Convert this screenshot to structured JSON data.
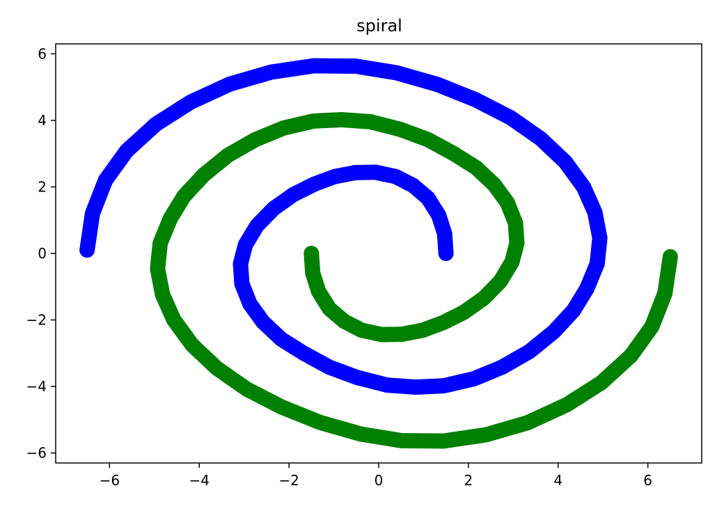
{
  "chart_data": {
    "type": "scatter",
    "title": "spiral",
    "xlabel": "",
    "ylabel": "",
    "xlim": [
      -7.2,
      7.2
    ],
    "ylim": [
      -6.3,
      6.3
    ],
    "xticks": [
      -6,
      -4,
      -2,
      0,
      2,
      4,
      6
    ],
    "yticks": [
      -6,
      -4,
      -2,
      0,
      2,
      4,
      6
    ],
    "xtick_labels": [
      "−6",
      "−4",
      "−2",
      "0",
      "2",
      "4",
      "6"
    ],
    "ytick_labels": [
      "−6",
      "−4",
      "−2",
      "0",
      "2",
      "4",
      "6"
    ],
    "grid": false,
    "legend": "none",
    "series": [
      {
        "color": "#0000ff",
        "points": [
          [
            1.5,
            0.0
          ],
          [
            1.47,
            0.59
          ],
          [
            1.34,
            1.14
          ],
          [
            1.1,
            1.66
          ],
          [
            0.77,
            2.04
          ],
          [
            0.38,
            2.31
          ],
          [
            -0.07,
            2.44
          ],
          [
            -0.52,
            2.43
          ],
          [
            -0.98,
            2.31
          ],
          [
            -1.44,
            2.08
          ],
          [
            -1.9,
            1.77
          ],
          [
            -2.34,
            1.35
          ],
          [
            -2.71,
            0.84
          ],
          [
            -2.97,
            0.26
          ],
          [
            -3.08,
            -0.31
          ],
          [
            -3.05,
            -0.91
          ],
          [
            -2.87,
            -1.52
          ],
          [
            -2.58,
            -2.06
          ],
          [
            -2.17,
            -2.58
          ],
          [
            -1.66,
            -3.01
          ],
          [
            -1.1,
            -3.42
          ],
          [
            -0.48,
            -3.73
          ],
          [
            0.19,
            -3.96
          ],
          [
            0.83,
            -4.02
          ],
          [
            1.45,
            -3.98
          ],
          [
            2.12,
            -3.77
          ],
          [
            2.75,
            -3.42
          ],
          [
            3.36,
            -2.95
          ],
          [
            3.9,
            -2.36
          ],
          [
            4.34,
            -1.72
          ],
          [
            4.64,
            -1.06
          ],
          [
            4.87,
            -0.31
          ],
          [
            4.93,
            0.46
          ],
          [
            4.82,
            1.23
          ],
          [
            4.57,
            1.99
          ],
          [
            4.16,
            2.75
          ],
          [
            3.61,
            3.45
          ],
          [
            2.94,
            4.08
          ],
          [
            2.16,
            4.62
          ],
          [
            1.31,
            5.08
          ],
          [
            0.4,
            5.43
          ],
          [
            -0.51,
            5.63
          ],
          [
            -1.45,
            5.64
          ],
          [
            -2.4,
            5.45
          ],
          [
            -3.32,
            5.09
          ],
          [
            -4.19,
            4.55
          ],
          [
            -4.96,
            3.89
          ],
          [
            -5.62,
            3.08
          ],
          [
            -6.09,
            2.2
          ],
          [
            -6.38,
            1.2
          ],
          [
            -6.5,
            0.1
          ]
        ]
      },
      {
        "color": "#008000",
        "points": [
          [
            -1.5,
            0.0
          ],
          [
            -1.47,
            -0.59
          ],
          [
            -1.34,
            -1.14
          ],
          [
            -1.1,
            -1.66
          ],
          [
            -0.77,
            -2.04
          ],
          [
            -0.38,
            -2.31
          ],
          [
            0.07,
            -2.44
          ],
          [
            0.52,
            -2.43
          ],
          [
            0.98,
            -2.31
          ],
          [
            1.44,
            -2.08
          ],
          [
            1.9,
            -1.77
          ],
          [
            2.34,
            -1.35
          ],
          [
            2.71,
            -0.84
          ],
          [
            2.97,
            -0.26
          ],
          [
            3.08,
            0.31
          ],
          [
            3.05,
            0.91
          ],
          [
            2.87,
            1.52
          ],
          [
            2.58,
            2.06
          ],
          [
            2.17,
            2.58
          ],
          [
            1.66,
            3.01
          ],
          [
            1.1,
            3.42
          ],
          [
            0.48,
            3.73
          ],
          [
            -0.19,
            3.96
          ],
          [
            -0.83,
            4.02
          ],
          [
            -1.45,
            3.98
          ],
          [
            -2.12,
            3.77
          ],
          [
            -2.75,
            3.42
          ],
          [
            -3.36,
            2.95
          ],
          [
            -3.9,
            2.36
          ],
          [
            -4.34,
            1.72
          ],
          [
            -4.64,
            1.06
          ],
          [
            -4.87,
            0.31
          ],
          [
            -4.93,
            -0.46
          ],
          [
            -4.82,
            -1.23
          ],
          [
            -4.57,
            -1.99
          ],
          [
            -4.16,
            -2.75
          ],
          [
            -3.61,
            -3.45
          ],
          [
            -2.94,
            -4.08
          ],
          [
            -2.16,
            -4.62
          ],
          [
            -1.31,
            -5.08
          ],
          [
            -0.4,
            -5.43
          ],
          [
            0.51,
            -5.63
          ],
          [
            1.45,
            -5.64
          ],
          [
            2.4,
            -5.45
          ],
          [
            3.32,
            -5.09
          ],
          [
            4.19,
            -4.55
          ],
          [
            4.96,
            -3.89
          ],
          [
            5.62,
            -3.08
          ],
          [
            6.09,
            -2.2
          ],
          [
            6.38,
            -1.2
          ],
          [
            6.5,
            -0.1
          ]
        ]
      }
    ]
  }
}
